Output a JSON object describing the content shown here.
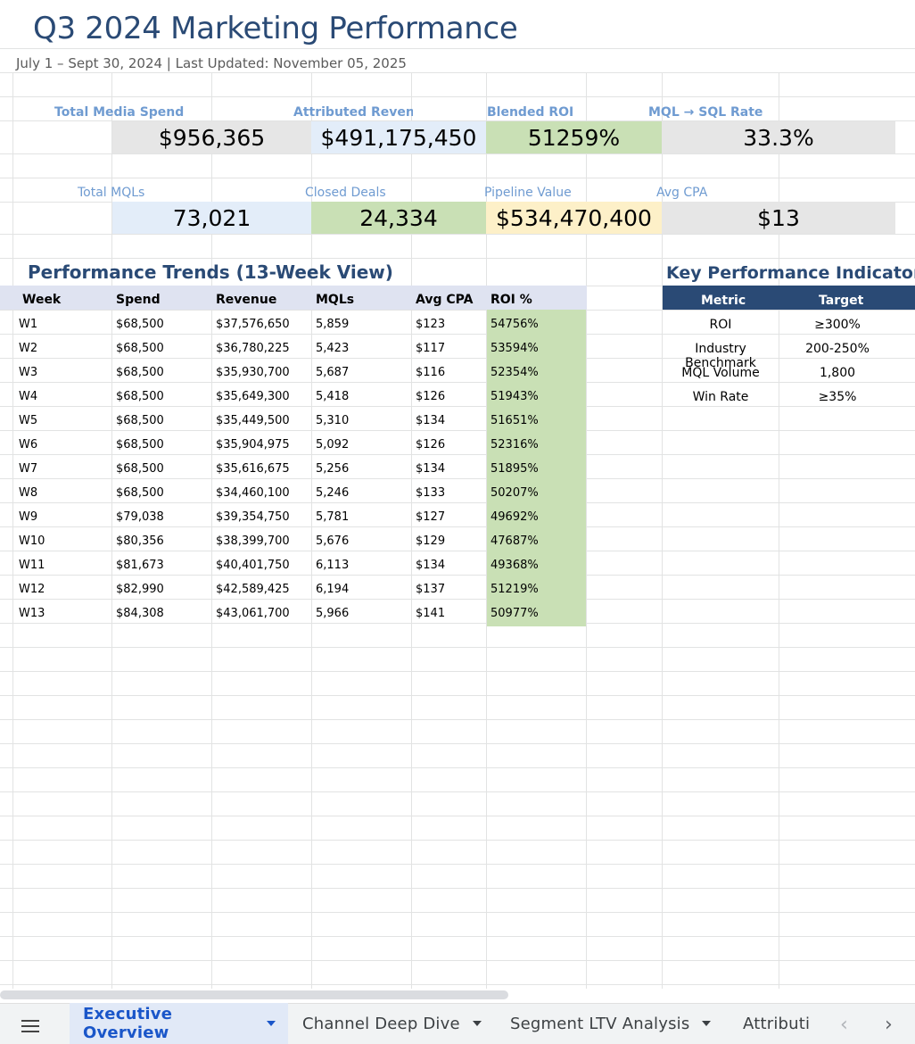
{
  "sheet": {
    "title": "Q3 2024 Marketing Performance",
    "subtitle": "July 1 – Sept 30, 2024 | Last Updated: November 05, 2025"
  },
  "kpis_row1": [
    {
      "label": "Total Media Spend",
      "value": "$956,365",
      "color": "#e6e6e6"
    },
    {
      "label": "Attributed Revenue",
      "value": "$491,175,450",
      "color": "#e3edf9"
    },
    {
      "label": "Blended ROI",
      "value": "51259%",
      "color": "#c9e0b5"
    },
    {
      "label": "MQL → SQL Rate",
      "value": "33.3%",
      "color": "#e6e6e6"
    }
  ],
  "kpis_row2": [
    {
      "label": "Total MQLs",
      "value": "73,021",
      "color": "#e3edf9"
    },
    {
      "label": "Closed Deals",
      "value": "24,334",
      "color": "#c9e0b5"
    },
    {
      "label": "Pipeline Value",
      "value": "$534,470,400",
      "color": "#fdf0c8"
    },
    {
      "label": "Avg CPA",
      "value": "$13",
      "color": "#e6e6e6"
    }
  ],
  "trends": {
    "title": "Performance Trends (13-Week View)",
    "headers": [
      "Week",
      "Spend",
      "Revenue",
      "MQLs",
      "Avg CPA",
      "ROI %"
    ],
    "rows": [
      [
        "W1",
        "$68,500",
        "$37,576,650",
        "5,859",
        "$123",
        "54756%"
      ],
      [
        "W2",
        "$68,500",
        "$36,780,225",
        "5,423",
        "$117",
        "53594%"
      ],
      [
        "W3",
        "$68,500",
        "$35,930,700",
        "5,687",
        "$116",
        "52354%"
      ],
      [
        "W4",
        "$68,500",
        "$35,649,300",
        "5,418",
        "$126",
        "51943%"
      ],
      [
        "W5",
        "$68,500",
        "$35,449,500",
        "5,310",
        "$134",
        "51651%"
      ],
      [
        "W6",
        "$68,500",
        "$35,904,975",
        "5,092",
        "$126",
        "52316%"
      ],
      [
        "W7",
        "$68,500",
        "$35,616,675",
        "5,256",
        "$134",
        "51895%"
      ],
      [
        "W8",
        "$68,500",
        "$34,460,100",
        "5,246",
        "$133",
        "50207%"
      ],
      [
        "W9",
        "$79,038",
        "$39,354,750",
        "5,781",
        "$127",
        "49692%"
      ],
      [
        "W10",
        "$80,356",
        "$38,399,700",
        "5,676",
        "$129",
        "47687%"
      ],
      [
        "W11",
        "$81,673",
        "$40,401,750",
        "6,113",
        "$134",
        "49368%"
      ],
      [
        "W12",
        "$82,990",
        "$42,589,425",
        "6,194",
        "$137",
        "51219%"
      ],
      [
        "W13",
        "$84,308",
        "$43,061,700",
        "5,966",
        "$141",
        "50977%"
      ]
    ]
  },
  "kpi_table": {
    "title": "Key Performance Indicators vs",
    "headers": [
      "Metric",
      "Target"
    ],
    "rows": [
      [
        "ROI",
        "≥300%"
      ],
      [
        "Industry Benchmark",
        "200-250%"
      ],
      [
        "MQL Volume",
        "1,800"
      ],
      [
        "Win Rate",
        "≥35%"
      ]
    ]
  },
  "tabs": [
    {
      "label": "Executive Overview",
      "active": true
    },
    {
      "label": "Channel Deep Dive",
      "active": false
    },
    {
      "label": "Segment LTV Analysis",
      "active": false
    },
    {
      "label": "Attributi",
      "active": false
    }
  ],
  "icons": {
    "menu": "menu-icon",
    "prev": "chevron-left-icon",
    "next": "chevron-right-icon"
  }
}
